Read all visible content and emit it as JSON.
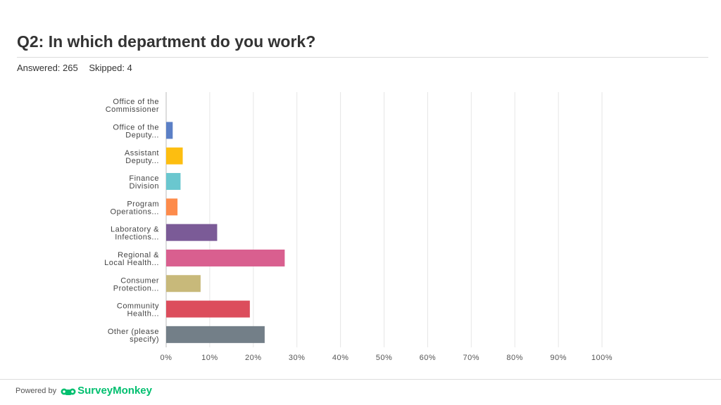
{
  "header": {
    "title": "Q2: In which department do you work?",
    "answered": "Answered: 265",
    "skipped": "Skipped: 4"
  },
  "footer": {
    "powered_by": "Powered by",
    "brand": "SurveyMonkey"
  },
  "colors": {
    "grid": "#e6e6e6",
    "axis": "#bbbbbb",
    "brand": "#00bf6f"
  },
  "chart_data": {
    "type": "bar",
    "orientation": "horizontal",
    "categories": [
      [
        "Office of the",
        "Commissioner"
      ],
      [
        "Office of the",
        "Deputy..."
      ],
      [
        "Assistant",
        "Deputy..."
      ],
      [
        "Finance",
        "Division"
      ],
      [
        "Program",
        "Operations..."
      ],
      [
        "Laboratory &",
        "Infections..."
      ],
      [
        "Regional &",
        "Local Health..."
      ],
      [
        "Consumer",
        "Protection..."
      ],
      [
        "Community",
        "Health..."
      ],
      [
        "Other (please",
        "specify)"
      ]
    ],
    "values": [
      0.0,
      1.5,
      3.8,
      3.3,
      2.6,
      11.7,
      27.2,
      7.9,
      19.2,
      22.6
    ],
    "bar_colors": [
      "#5b7fc6",
      "#5b7fc6",
      "#fdbe10",
      "#6ac7cf",
      "#fd8b4b",
      "#7b5b97",
      "#d95f8f",
      "#c8b97a",
      "#dc4d5c",
      "#737f88"
    ],
    "xlim": [
      0,
      100
    ],
    "x_ticks": [
      "0%",
      "10%",
      "20%",
      "30%",
      "40%",
      "50%",
      "60%",
      "70%",
      "80%",
      "90%",
      "100%"
    ],
    "grid": true,
    "legend": "none"
  }
}
